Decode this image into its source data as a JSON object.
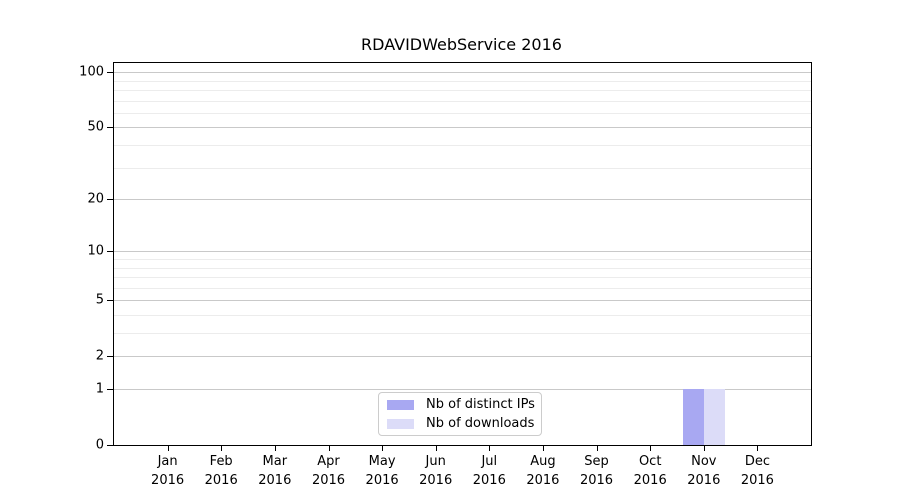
{
  "chart_data": {
    "type": "bar",
    "title": "RDAVIDWebService 2016",
    "categories": [
      "Jan",
      "Feb",
      "Mar",
      "Apr",
      "May",
      "Jun",
      "Jul",
      "Aug",
      "Sep",
      "Oct",
      "Nov",
      "Dec"
    ],
    "category_year": "2016",
    "series": [
      {
        "name": "Nb of distinct IPs",
        "color": "#a8a8f2",
        "values": [
          0,
          0,
          0,
          0,
          0,
          0,
          0,
          0,
          0,
          0,
          1,
          0
        ]
      },
      {
        "name": "Nb of downloads",
        "color": "#dcdcf8",
        "values": [
          0,
          0,
          0,
          0,
          0,
          0,
          0,
          0,
          0,
          0,
          1,
          0
        ]
      }
    ],
    "y_scale": "log1p",
    "ylim": [
      0,
      112
    ],
    "y_major_ticks": [
      0,
      1,
      2,
      5,
      10,
      20,
      50,
      100
    ],
    "y_minor_ticks": [
      3,
      4,
      6,
      7,
      8,
      9,
      30,
      40,
      60,
      70,
      80,
      90
    ],
    "grid": true,
    "legend_position": "lower center",
    "colors": {
      "grid_major": "#c9c9c9",
      "grid_minor": "#ececec",
      "axis": "#000000",
      "background": "#ffffff"
    }
  }
}
